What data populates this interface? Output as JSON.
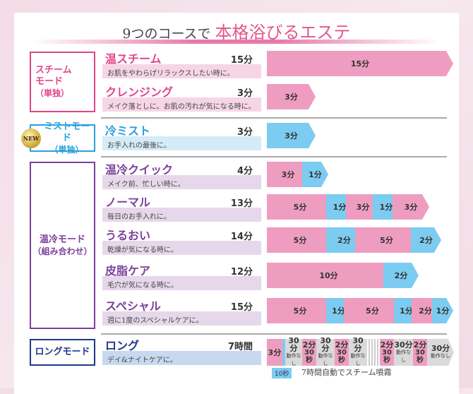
{
  "title": {
    "prefix": "9つのコースで",
    "accent": "本格浴びるエステ"
  },
  "colors": {
    "pink": "#ee9dc0",
    "blue": "#7ccbf0",
    "gray": "#dadada"
  },
  "modes": [
    {
      "label": "スチーム",
      "label2": "モード",
      "sub": "（単独）",
      "color": "#e0458a"
    },
    {
      "label": "ミストモード",
      "sub": "（単独）",
      "color": "#2aa0dc",
      "badge": "NEW"
    },
    {
      "label": "温冷モード",
      "sub": "（組み合わせ）",
      "color": "#7b3f9a"
    },
    {
      "label": "ロングモード",
      "color": "#1c3a8a"
    }
  ],
  "courses": [
    {
      "name": "温スチーム",
      "minutes": "15分",
      "desc": "お肌をやわらげリラックスしたい時に。",
      "segments": [
        {
          "label": "15分",
          "type": "pink"
        }
      ]
    },
    {
      "name": "クレンジング",
      "minutes": "3分",
      "desc": "メイク落としに。お肌の汚れが気になる時に。",
      "segments": [
        {
          "label": "3分",
          "type": "pink"
        }
      ]
    },
    {
      "name": "冷ミスト",
      "minutes": "3分",
      "desc": "お手入れの最後に。",
      "segments": [
        {
          "label": "3分",
          "type": "blue"
        }
      ]
    },
    {
      "name": "温冷クイック",
      "minutes": "4分",
      "desc": "メイク前、忙しい時に。",
      "segments": [
        {
          "label": "3分",
          "type": "pink"
        },
        {
          "label": "1分",
          "type": "blue"
        }
      ]
    },
    {
      "name": "ノーマル",
      "minutes": "13分",
      "desc": "毎日のお手入れに。",
      "segments": [
        {
          "label": "5分",
          "type": "pink"
        },
        {
          "label": "1分",
          "type": "blue"
        },
        {
          "label": "3分",
          "type": "pink"
        },
        {
          "label": "1分",
          "type": "blue"
        },
        {
          "label": "3分",
          "type": "pink"
        }
      ]
    },
    {
      "name": "うるおい",
      "minutes": "14分",
      "desc": "乾燥が気になる時に。",
      "segments": [
        {
          "label": "5分",
          "type": "pink"
        },
        {
          "label": "2分",
          "type": "blue"
        },
        {
          "label": "5分",
          "type": "pink"
        },
        {
          "label": "2分",
          "type": "blue"
        }
      ]
    },
    {
      "name": "皮脂ケア",
      "minutes": "12分",
      "desc": "毛穴が気になる時に。",
      "segments": [
        {
          "label": "10分",
          "type": "pink"
        },
        {
          "label": "2分",
          "type": "blue"
        }
      ]
    },
    {
      "name": "スペシャル",
      "minutes": "15分",
      "desc": "週に1度のスペシャルケアに。",
      "segments": [
        {
          "label": "5分",
          "type": "pink"
        },
        {
          "label": "1分",
          "type": "blue"
        },
        {
          "label": "5分",
          "type": "pink"
        },
        {
          "label": "1分",
          "type": "blue"
        },
        {
          "label": "2分",
          "type": "pink"
        },
        {
          "label": "1分",
          "type": "blue"
        }
      ]
    },
    {
      "name": "ロング",
      "minutes": "7時間",
      "desc": "デイ&ナイトケアに。",
      "segments": [
        {
          "label": "3分",
          "type": "pink"
        },
        {
          "label": "",
          "type": "blue"
        },
        {
          "label": "30分",
          "sub": "動作なし",
          "type": "gray"
        },
        {
          "label": "2分",
          "sub": "30秒",
          "type": "pink"
        },
        {
          "label": "30分",
          "sub": "動作なし",
          "type": "gray"
        },
        {
          "label": "2分",
          "sub": "30秒",
          "type": "pink"
        },
        {
          "label": "30分",
          "sub": "動作なし",
          "type": "gray"
        },
        {
          "label": "2分",
          "sub": "30秒",
          "type": "pink"
        },
        {
          "label": "30分",
          "sub": "動作なし",
          "type": "gray"
        },
        {
          "label": "2分",
          "sub": "30秒",
          "type": "pink"
        },
        {
          "label": "30分",
          "sub": "動作なし",
          "type": "gray"
        }
      ]
    }
  ],
  "long_note": {
    "tag": "10秒",
    "text": "7時間自動でスチーム噴霧"
  }
}
